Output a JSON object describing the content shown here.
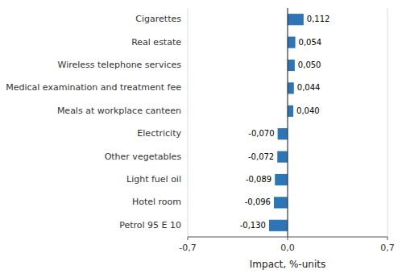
{
  "chart_data": {
    "type": "bar",
    "orientation": "horizontal",
    "categories": [
      "Petrol 95 E 10",
      "Hotel room",
      "Light fuel oil",
      "Other vegetables",
      "Electricity",
      "Meals at workplace canteen",
      "Medical examination and treatment fee",
      "Wireless telephone services",
      "Real estate",
      "Cigarettes"
    ],
    "values": [
      -0.13,
      -0.096,
      -0.089,
      -0.072,
      -0.07,
      0.04,
      0.044,
      0.05,
      0.054,
      0.112
    ],
    "value_labels": [
      "-0,130",
      "-0,096",
      "-0,089",
      "-0,072",
      "-0,070",
      "0,040",
      "0,044",
      "0,050",
      "0,054",
      "0,112"
    ],
    "data_labels": true,
    "color": "#2E75B6",
    "xlabel": "Impact, %-units",
    "xlim": [
      -0.7,
      0.7
    ],
    "xticks": [
      {
        "value": -0.7,
        "label": "-0,7"
      },
      {
        "value": 0.0,
        "label": "0,0"
      },
      {
        "value": 0.7,
        "label": "0,7"
      }
    ],
    "grid": true
  }
}
